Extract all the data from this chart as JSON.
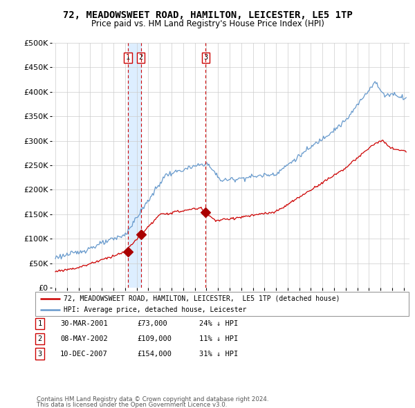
{
  "title": "72, MEADOWSWEET ROAD, HAMILTON, LEICESTER, LE5 1TP",
  "subtitle": "Price paid vs. HM Land Registry's House Price Index (HPI)",
  "legend_line1": "72, MEADOWSWEET ROAD, HAMILTON, LEICESTER,  LE5 1TP (detached house)",
  "legend_line2": "HPI: Average price, detached house, Leicester",
  "sales": [
    {
      "label": "1",
      "date": "30-MAR-2001",
      "price": 73000,
      "pct": "24% ↓ HPI",
      "year": 2001.24
    },
    {
      "label": "2",
      "date": "08-MAY-2002",
      "price": 109000,
      "pct": "11% ↓ HPI",
      "year": 2002.36
    },
    {
      "label": "3",
      "date": "10-DEC-2007",
      "price": 154000,
      "pct": "31% ↓ HPI",
      "year": 2007.94
    }
  ],
  "footer1": "Contains HM Land Registry data © Crown copyright and database right 2024.",
  "footer2": "This data is licensed under the Open Government Licence v3.0.",
  "hpi_color": "#6699cc",
  "hpi_shade_color": "#ddeeff",
  "price_color": "#cc0000",
  "marker_color": "#aa0000",
  "vline_color": "#cc0000",
  "background_color": "#ffffff",
  "grid_color": "#cccccc",
  "ylim": [
    0,
    500000
  ],
  "xlim": [
    1994.7,
    2025.5
  ],
  "yticks": [
    0,
    50000,
    100000,
    150000,
    200000,
    250000,
    300000,
    350000,
    400000,
    450000,
    500000
  ],
  "ylabels": [
    "£0",
    "£50K",
    "£100K",
    "£150K",
    "£200K",
    "£250K",
    "£300K",
    "£350K",
    "£400K",
    "£450K",
    "£500K"
  ]
}
